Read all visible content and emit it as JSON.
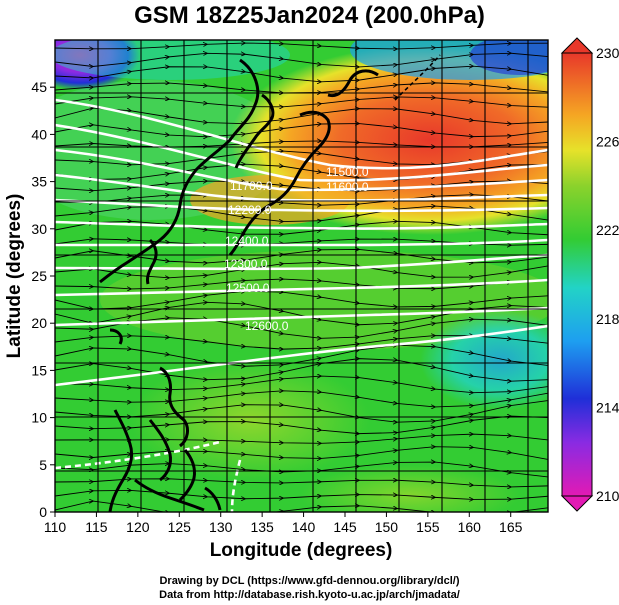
{
  "title": "GSM 18Z25Jan2024 (200.0hPa)",
  "x_axis": {
    "label": "Longitude (degrees)",
    "ticks": [
      110,
      115,
      120,
      125,
      130,
      135,
      140,
      145,
      150,
      155,
      160,
      165
    ]
  },
  "y_axis": {
    "label": "Latitude (degrees)",
    "ticks": [
      0,
      5,
      10,
      15,
      20,
      25,
      30,
      35,
      40,
      45
    ]
  },
  "colorbar": {
    "ticks": [
      210,
      214,
      218,
      222,
      226,
      230
    ],
    "min": 210,
    "max": 230
  },
  "contour_labels": [
    "11700.0",
    "11500.0",
    "11600.0",
    "12200.0",
    "12400.0",
    "12300.0",
    "12500.0",
    "12600.0"
  ],
  "credits": {
    "line1": "Drawing by DCL (https://www.gfd-dennou.org/library/dcl/)",
    "line2": "Data from http://database.rish.kyoto-u.ac.jp/arch/jmadata/"
  },
  "colors": {
    "background_field": "#33cc33",
    "warm_core": "#e8382a",
    "contour": "#ffffff",
    "coastline": "#000000"
  }
}
